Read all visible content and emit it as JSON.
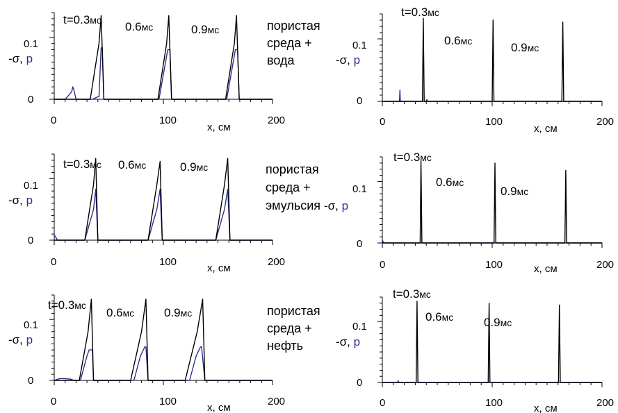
{
  "colors": {
    "sigma": "#000000",
    "p": "#2b2f8f",
    "axis": "#000000"
  },
  "axis_text": {
    "y_label_sigma": "-σ, ",
    "y_label_p": "p",
    "x_label": "x, см",
    "y_tick_0": "0",
    "y_tick_01": "0.1",
    "x_tick_0": "0",
    "x_tick_100": "100",
    "x_tick_200": "200"
  },
  "rows": [
    {
      "medium": [
        "пористая",
        "среда +",
        "вода"
      ]
    },
    {
      "medium": [
        "пористая",
        "среда +",
        "эмульсия"
      ]
    },
    {
      "medium": [
        "пористая",
        "среда +",
        "нефть"
      ]
    }
  ],
  "time_labels": {
    "t03_prefix": "t=0.3",
    "t06": "0.6",
    "t09": "0.9",
    "unit": "мс"
  },
  "chart_data": [
    {
      "type": "line",
      "panel": "water-left",
      "xlabel": "x, см",
      "ylabel": "-σ, p",
      "xlim": [
        0,
        200
      ],
      "ylim": [
        0,
        0.14
      ],
      "grid": false,
      "series": [
        {
          "name": "-σ",
          "color": "#000000",
          "x": [
            0,
            33,
            41,
            43,
            45.5,
            95,
            103,
            105,
            107.5,
            157,
            165,
            167,
            169.5,
            200
          ],
          "y": [
            0,
            0,
            0.09,
            0.135,
            0,
            0,
            0.09,
            0.135,
            0,
            0,
            0.09,
            0.135,
            0,
            0
          ]
        },
        {
          "name": "p",
          "color": "#2b2f8f",
          "x": [
            0,
            10,
            16,
            17,
            18,
            20,
            35,
            40,
            41,
            43,
            44,
            45.5,
            96,
            101,
            104,
            106,
            107.5,
            158,
            163,
            166,
            168,
            169.5,
            200
          ],
          "y": [
            0,
            0,
            0.012,
            0.02,
            0.015,
            0,
            0,
            0.004,
            0.004,
            0.083,
            0.083,
            0,
            0,
            0.05,
            0.08,
            0.08,
            0,
            0,
            0.05,
            0.08,
            0.08,
            0,
            0
          ]
        }
      ]
    },
    {
      "type": "line",
      "panel": "water-right",
      "xlabel": "x, см",
      "ylabel": "-σ, p",
      "xlim": [
        0,
        200
      ],
      "ylim": [
        0,
        0.14
      ],
      "grid": false,
      "series": [
        {
          "name": "-σ",
          "color": "#000000",
          "x": [
            0,
            36.5,
            37.3,
            38.1,
            100,
            100.8,
            101.6,
            163.5,
            164.3,
            165.1,
            200
          ],
          "y": [
            0,
            0,
            0.133,
            0,
            0,
            0.13,
            0,
            0,
            0.127,
            0,
            0
          ]
        },
        {
          "name": "p",
          "color": "#2b2f8f",
          "x": [
            0,
            15.6,
            16,
            16.4,
            40,
            40.5,
            41,
            200
          ],
          "y": [
            0,
            0,
            0.018,
            0,
            0,
            0.003,
            0,
            0
          ]
        }
      ]
    },
    {
      "type": "line",
      "panel": "emulsion-left",
      "xlabel": "x, см",
      "ylabel": "-σ, p",
      "xlim": [
        0,
        200
      ],
      "ylim": [
        0,
        0.14
      ],
      "grid": false,
      "series": [
        {
          "name": "-σ",
          "color": "#000000",
          "x": [
            0,
            28,
            36,
            38,
            40,
            86,
            94,
            97,
            99,
            148,
            156,
            159,
            161,
            200
          ],
          "y": [
            0,
            0,
            0.09,
            0.133,
            0,
            0,
            0.09,
            0.128,
            0,
            0,
            0.09,
            0.133,
            0,
            0
          ]
        },
        {
          "name": "p",
          "color": "#2b2f8f",
          "x": [
            0,
            0.3,
            1,
            3,
            28,
            36,
            38,
            40,
            86,
            94,
            97,
            99,
            148,
            156,
            159,
            161,
            200
          ],
          "y": [
            0.005,
            0.008,
            0.006,
            0,
            0,
            0.05,
            0.083,
            0,
            0,
            0.05,
            0.083,
            0,
            0,
            0.05,
            0.083,
            0,
            0
          ]
        }
      ]
    },
    {
      "type": "line",
      "panel": "emulsion-right",
      "xlabel": "x, см",
      "ylabel": "-σ, p",
      "xlim": [
        0,
        200
      ],
      "ylim": [
        0,
        0.14
      ],
      "grid": false,
      "series": [
        {
          "name": "-σ",
          "color": "#000000",
          "x": [
            0,
            34.4,
            35.2,
            36,
            101.7,
            102.5,
            103.3,
            166.2,
            167,
            167.8,
            200
          ],
          "y": [
            0,
            0,
            0.133,
            0,
            0,
            0.13,
            0,
            0,
            0.118,
            0,
            0
          ]
        },
        {
          "name": "p",
          "color": "#2b2f8f",
          "x": [
            0,
            0.3,
            1,
            200
          ],
          "y": [
            0.005,
            0.004,
            0,
            0
          ]
        }
      ]
    },
    {
      "type": "line",
      "panel": "oil-left",
      "xlabel": "x, см",
      "ylabel": "-σ, p",
      "xlim": [
        0,
        200
      ],
      "ylim": [
        0,
        0.14
      ],
      "grid": false,
      "series": [
        {
          "name": "-σ",
          "color": "#000000",
          "x": [
            0,
            23,
            31,
            34,
            36,
            70,
            80,
            84,
            86,
            120,
            131,
            136,
            138,
            200
          ],
          "y": [
            0,
            0,
            0.08,
            0.133,
            0,
            0,
            0.08,
            0.133,
            0,
            0,
            0.08,
            0.133,
            0,
            0
          ]
        },
        {
          "name": "p",
          "color": "#2b2f8f",
          "x": [
            0,
            5,
            9,
            15,
            18,
            24,
            30,
            32,
            35,
            36,
            73,
            79,
            83,
            84,
            86,
            124,
            130,
            134,
            135,
            138,
            200
          ],
          "y": [
            0,
            0.003,
            0.003,
            0.002,
            0,
            0,
            0.04,
            0.05,
            0.05,
            0,
            0,
            0.04,
            0.055,
            0.055,
            0,
            0,
            0.04,
            0.055,
            0.055,
            0,
            0
          ]
        }
      ]
    },
    {
      "type": "line",
      "panel": "oil-right",
      "xlabel": "x, см",
      "ylabel": "-σ, p",
      "xlim": [
        0,
        200
      ],
      "ylim": [
        0,
        0.14
      ],
      "grid": false,
      "series": [
        {
          "name": "-σ",
          "color": "#000000",
          "x": [
            0,
            30.8,
            31.6,
            32.4,
            96.4,
            97.2,
            98,
            160.4,
            161.2,
            162,
            200
          ],
          "y": [
            0,
            0,
            0.133,
            0,
            0,
            0.13,
            0,
            0,
            0.127,
            0,
            0
          ]
        },
        {
          "name": "p",
          "color": "#2b2f8f",
          "x": [
            0,
            14,
            14.4,
            14.8,
            200
          ],
          "y": [
            0,
            0,
            0.003,
            0,
            0
          ]
        }
      ]
    }
  ]
}
